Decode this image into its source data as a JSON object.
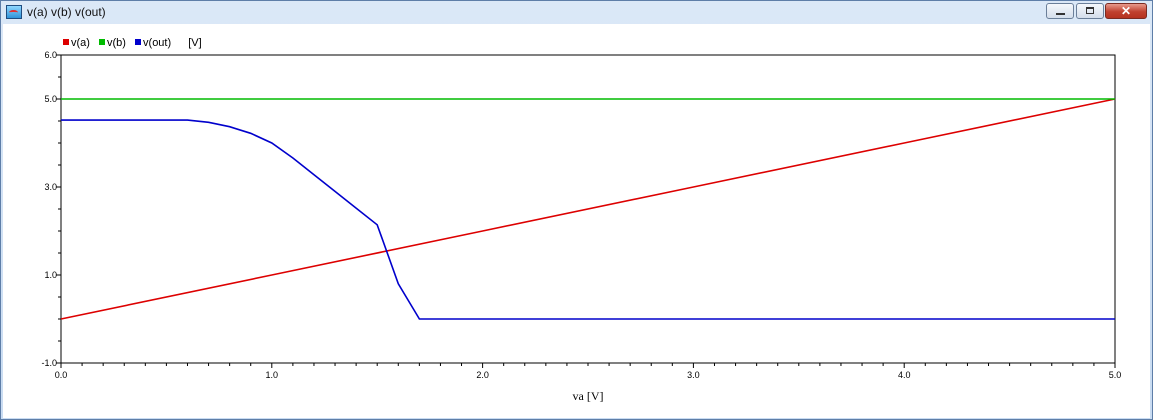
{
  "window": {
    "title": "v(a) v(b) v(out)"
  },
  "legend": {
    "items": [
      {
        "label": "v(a)",
        "color": "#dd0000"
      },
      {
        "label": "v(b)",
        "color": "#00bb00"
      },
      {
        "label": "v(out)",
        "color": "#0000cc"
      }
    ],
    "unit": "[V]"
  },
  "chart_data": {
    "type": "line",
    "xlabel": "va [V]",
    "xlim": [
      0.0,
      5.0
    ],
    "ylim": [
      -1.0,
      6.0
    ],
    "x_ticks": [
      "0.0",
      "1.0",
      "2.0",
      "3.0",
      "4.0",
      "5.0"
    ],
    "y_ticks": [
      "-1.0",
      "1.0",
      "3.0",
      "5.0",
      "6.0"
    ],
    "grid": false,
    "legend_position": "top-left",
    "series": [
      {
        "name": "v(a)",
        "color": "#dd0000",
        "x": [
          0.0,
          1.0,
          2.0,
          3.0,
          4.0,
          5.0
        ],
        "y": [
          0.0,
          1.0,
          2.0,
          3.0,
          4.0,
          5.0
        ]
      },
      {
        "name": "v(b)",
        "color": "#00bb00",
        "x": [
          0.0,
          5.0
        ],
        "y": [
          5.0,
          5.0
        ]
      },
      {
        "name": "v(out)",
        "color": "#0000cc",
        "x": [
          0.0,
          0.6,
          0.7,
          0.8,
          0.9,
          1.0,
          1.1,
          1.2,
          1.3,
          1.4,
          1.5,
          1.6,
          1.7,
          2.0,
          3.0,
          4.0,
          5.0
        ],
        "y": [
          4.52,
          4.52,
          4.47,
          4.37,
          4.22,
          4.0,
          3.66,
          3.28,
          2.9,
          2.52,
          2.14,
          0.8,
          0.0,
          0.0,
          0.0,
          0.0,
          0.0
        ]
      }
    ]
  }
}
